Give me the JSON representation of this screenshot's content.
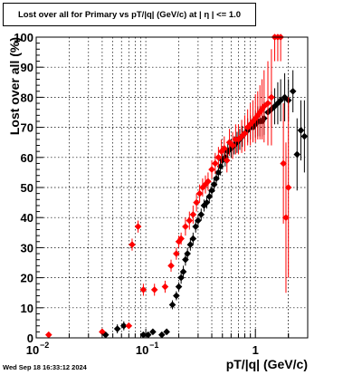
{
  "chart_data": {
    "type": "scatter",
    "title": "Lost over all for Primary vs pT/|q| (GeV/c) at |  η | <= 1.0",
    "xlabel": "pT/|q| (GeV/c)",
    "ylabel": "Lost over all (%)",
    "xscale": "log",
    "xlim": [
      0.01,
      3.0
    ],
    "ylim": [
      0,
      100
    ],
    "grid": true,
    "x_ticks": [
      {
        "v": 0.01,
        "label": "10"
      },
      {
        "v": 0.1,
        "label": "10"
      },
      {
        "v": 1,
        "label": "1"
      }
    ],
    "x_tick_exponents": [
      "−2",
      "−1",
      ""
    ],
    "y_ticks": [
      0,
      10,
      20,
      30,
      40,
      50,
      60,
      70,
      80,
      90,
      100
    ],
    "colors": {
      "series_black": "#000000",
      "series_red": "#ff0000"
    },
    "series": [
      {
        "color": "black",
        "x": [
          0.043,
          0.055,
          0.063,
          0.095,
          0.105,
          0.116,
          0.14,
          0.155,
          0.175,
          0.19,
          0.2,
          0.21,
          0.22,
          0.23,
          0.24,
          0.255,
          0.27,
          0.285,
          0.3,
          0.32,
          0.34,
          0.36,
          0.38,
          0.4,
          0.42,
          0.44,
          0.46,
          0.48,
          0.5,
          0.53,
          0.56,
          0.6,
          0.64,
          0.68,
          0.72,
          0.76,
          0.8,
          0.85,
          0.9,
          0.95,
          1.0,
          1.05,
          1.1,
          1.15,
          1.2,
          1.3,
          1.4,
          1.5,
          1.6,
          1.7,
          1.85,
          2.0,
          2.2,
          2.4,
          2.6,
          2.8
        ],
        "y": [
          1,
          3,
          4,
          1,
          1,
          2,
          1,
          2,
          11,
          14,
          17,
          20,
          22,
          26,
          28,
          31,
          33,
          37,
          39,
          41,
          44,
          45,
          47,
          49,
          51,
          53,
          55,
          57,
          59,
          60,
          62,
          63,
          64,
          65,
          66,
          67,
          68,
          69,
          70,
          70,
          71,
          72,
          72,
          72,
          73,
          75,
          76,
          77,
          78,
          79,
          80,
          79,
          82,
          61,
          69,
          67
        ],
        "yerr": [
          1,
          1.5,
          1.5,
          1,
          1,
          1,
          1,
          1,
          1.5,
          1.5,
          1.5,
          2,
          2,
          2,
          2,
          2,
          2,
          2,
          2,
          2,
          2,
          2,
          2,
          2.5,
          2.5,
          2.5,
          2.5,
          3,
          3,
          3,
          3,
          3,
          3,
          3.5,
          3.5,
          3.5,
          4,
          4,
          4,
          4.5,
          4.5,
          5,
          5,
          5,
          5.5,
          6,
          6,
          6,
          7,
          7,
          8,
          7,
          7,
          12,
          10,
          12
        ]
      },
      {
        "color": "red",
        "x": [
          0.013,
          0.04,
          0.07,
          0.075,
          0.085,
          0.095,
          0.12,
          0.15,
          0.17,
          0.19,
          0.2,
          0.21,
          0.23,
          0.25,
          0.27,
          0.29,
          0.31,
          0.33,
          0.35,
          0.37,
          0.4,
          0.43,
          0.46,
          0.49,
          0.52,
          0.55,
          0.58,
          0.62,
          0.66,
          0.7,
          0.75,
          0.8,
          0.85,
          0.9,
          0.95,
          1.0,
          1.05,
          1.1,
          1.15,
          1.2,
          1.3,
          1.4,
          1.5,
          1.6,
          1.7,
          1.8,
          1.9,
          2.0
        ],
        "y": [
          1,
          2,
          4,
          31,
          37,
          16,
          16,
          17,
          24,
          28,
          32,
          33,
          37,
          39,
          41,
          45,
          48,
          50,
          51,
          52,
          56,
          58,
          60,
          62,
          63,
          59,
          65,
          64,
          66,
          66,
          67,
          68,
          70,
          71,
          72,
          73,
          74,
          75,
          76,
          77,
          78,
          80,
          100,
          100,
          100,
          58,
          40,
          50
        ],
        "yerr": [
          1,
          1,
          1,
          2,
          2,
          2,
          2,
          2,
          2,
          2,
          2,
          2,
          3,
          3,
          3,
          3,
          3,
          3,
          3,
          3,
          3,
          3.5,
          3.5,
          4,
          4,
          4,
          4.5,
          4.5,
          5,
          5,
          5.5,
          6,
          6,
          7,
          7,
          8,
          8,
          9,
          10,
          12,
          14,
          16,
          8,
          8,
          8,
          20,
          25,
          30
        ]
      }
    ]
  },
  "footer": {
    "timestamp": "Wed Sep 18 16:33:12 2024"
  }
}
